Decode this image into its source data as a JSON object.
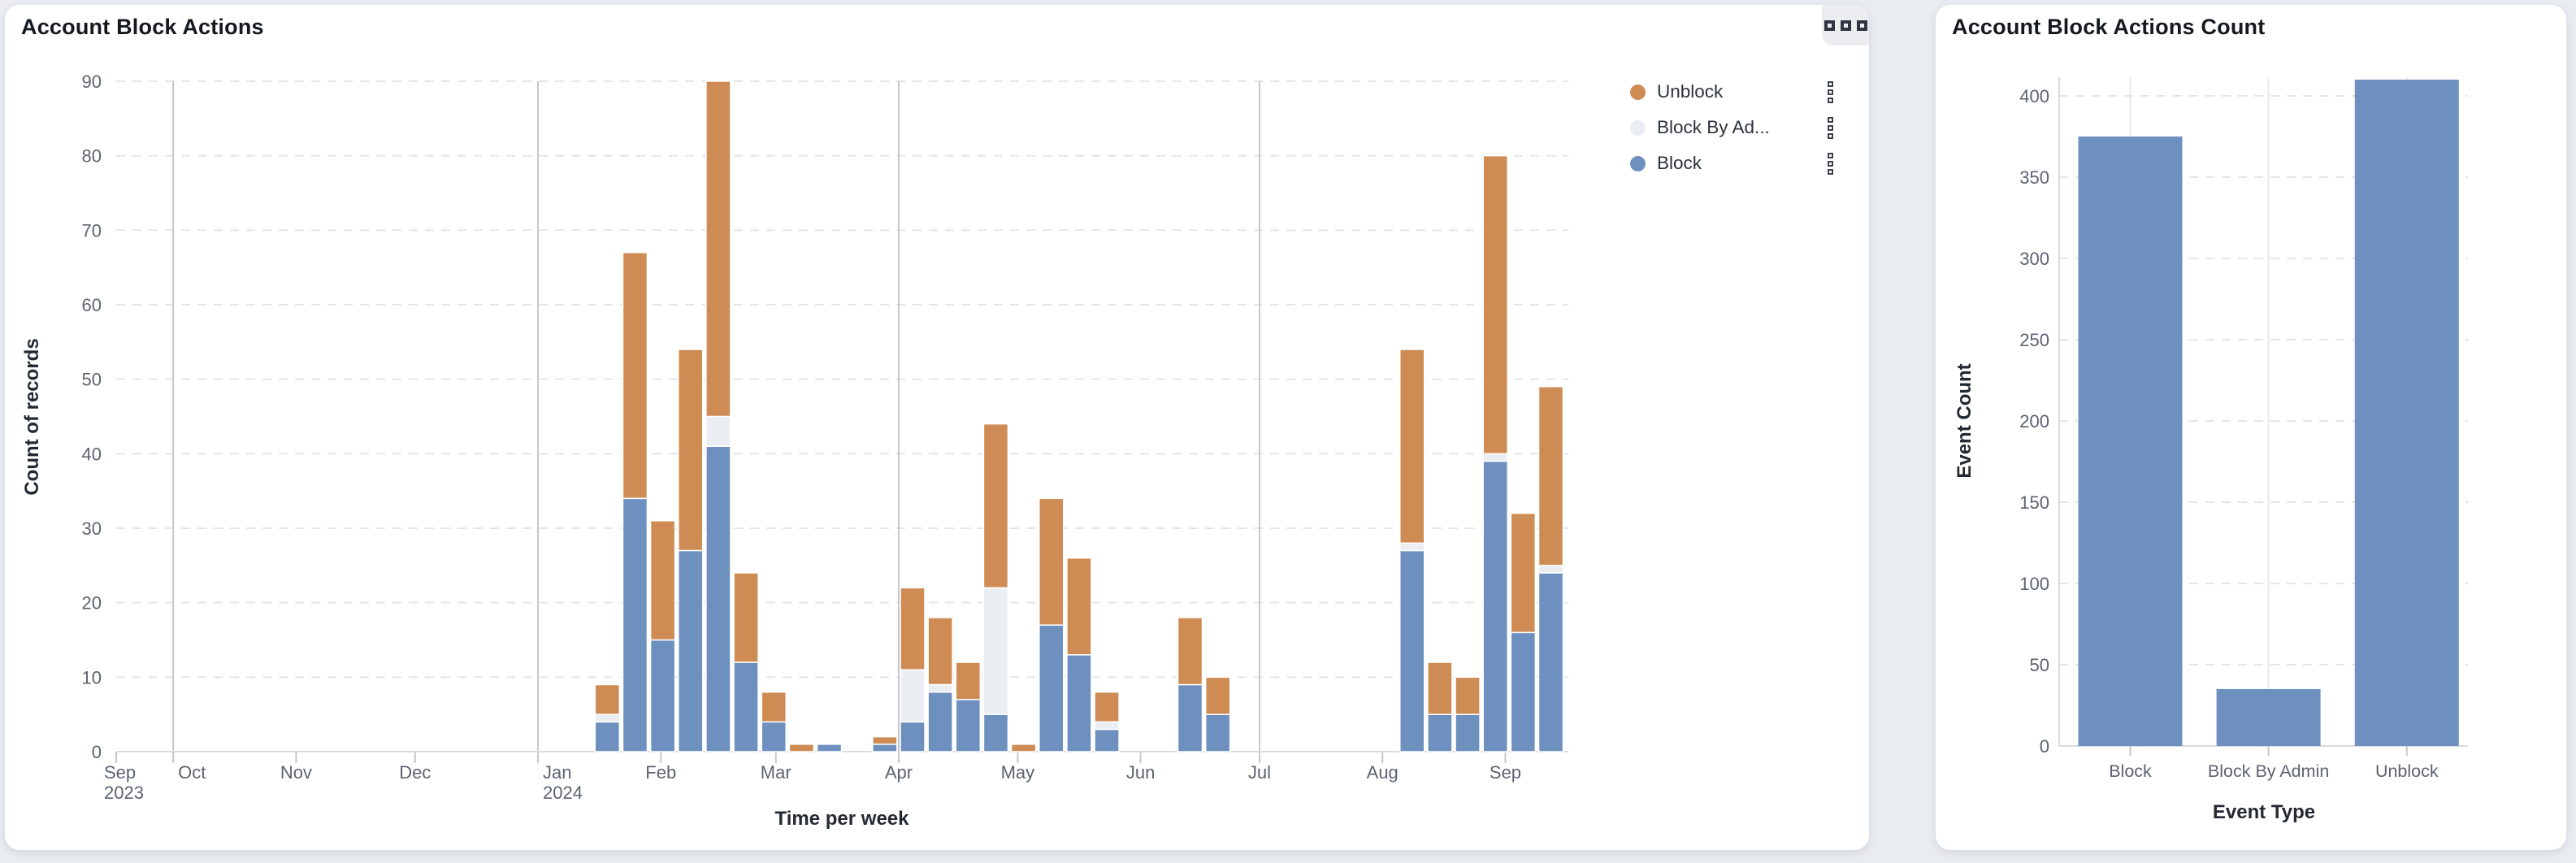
{
  "page": {
    "background": "#e9ecf1",
    "panel_background": "#ffffff"
  },
  "palette": {
    "block": "#6d90bf",
    "block_by_admin": "#eaeef3",
    "unblock": "#ce8c54",
    "tick_label": "#5c6370",
    "axis_title": "#242933",
    "grid_dashed": "#e3e5e9",
    "grid_quarter": "#c4c8ce",
    "axis_domain": "#d8dbdf",
    "category_center_grid": "#e7e9ed"
  },
  "panels": [
    {
      "title": "Account Block Actions"
    },
    {
      "title": "Account Block Actions Count"
    }
  ],
  "left_options_icon": "three-squares-menu",
  "legend": {
    "items": [
      {
        "label": "Unblock",
        "color": "#ce8c54",
        "menu_icon": "kebab-squares"
      },
      {
        "label": "Block By Ad...",
        "color": "#eaeef3",
        "menu_icon": "kebab-squares"
      },
      {
        "label": "Block",
        "color": "#6d90bf",
        "menu_icon": "kebab-squares"
      }
    ]
  },
  "chart_data": [
    {
      "type": "bar",
      "stacked": true,
      "title": "Account Block Actions",
      "xlabel": "Time per week",
      "ylabel": "Count of records",
      "ylim": [
        0,
        90
      ],
      "yticks": [
        0,
        10,
        20,
        30,
        40,
        50,
        60,
        70,
        80,
        90
      ],
      "grid": true,
      "legend_position": "top-right",
      "x_axis": {
        "unit": "week",
        "start": "2023-09-17",
        "end": "2024-09-17",
        "month_labels": [
          "Sep 2023",
          "Oct",
          "Nov",
          "Dec",
          "Jan 2024",
          "Feb",
          "Mar",
          "Apr",
          "May",
          "Jun",
          "Jul",
          "Aug",
          "Sep"
        ],
        "quarter_gridlines": [
          "2023-10-01",
          "2024-01-01",
          "2024-04-01",
          "2024-07-01"
        ]
      },
      "series_order_bottom_to_top": [
        "Block",
        "Block By Admin",
        "Unblock"
      ],
      "bars": [
        {
          "week": "2024-01-15",
          "block": 4,
          "block_by_admin": 1,
          "unblock": 4
        },
        {
          "week": "2024-01-22",
          "block": 34,
          "block_by_admin": 0,
          "unblock": 33
        },
        {
          "week": "2024-01-29",
          "block": 15,
          "block_by_admin": 0,
          "unblock": 16
        },
        {
          "week": "2024-02-05",
          "block": 27,
          "block_by_admin": 0,
          "unblock": 27
        },
        {
          "week": "2024-02-12",
          "block": 41,
          "block_by_admin": 4,
          "unblock": 45
        },
        {
          "week": "2024-02-19",
          "block": 12,
          "block_by_admin": 0,
          "unblock": 12
        },
        {
          "week": "2024-02-26",
          "block": 4,
          "block_by_admin": 0,
          "unblock": 4
        },
        {
          "week": "2024-03-04",
          "block": 0,
          "block_by_admin": 0,
          "unblock": 1
        },
        {
          "week": "2024-03-11",
          "block": 1,
          "block_by_admin": 0,
          "unblock": 0
        },
        {
          "week": "2024-03-25",
          "block": 1,
          "block_by_admin": 0,
          "unblock": 1
        },
        {
          "week": "2024-04-01",
          "block": 4,
          "block_by_admin": 7,
          "unblock": 11
        },
        {
          "week": "2024-04-08",
          "block": 8,
          "block_by_admin": 1,
          "unblock": 9
        },
        {
          "week": "2024-04-15",
          "block": 7,
          "block_by_admin": 0,
          "unblock": 5
        },
        {
          "week": "2024-04-22",
          "block": 5,
          "block_by_admin": 17,
          "unblock": 22
        },
        {
          "week": "2024-04-29",
          "block": 0,
          "block_by_admin": 0,
          "unblock": 1
        },
        {
          "week": "2024-05-06",
          "block": 17,
          "block_by_admin": 0,
          "unblock": 17
        },
        {
          "week": "2024-05-13",
          "block": 13,
          "block_by_admin": 0,
          "unblock": 13
        },
        {
          "week": "2024-05-20",
          "block": 3,
          "block_by_admin": 1,
          "unblock": 4
        },
        {
          "week": "2024-06-10",
          "block": 9,
          "block_by_admin": 0,
          "unblock": 9
        },
        {
          "week": "2024-06-17",
          "block": 5,
          "block_by_admin": 0,
          "unblock": 5
        },
        {
          "week": "2024-08-05",
          "block": 27,
          "block_by_admin": 1,
          "unblock": 26
        },
        {
          "week": "2024-08-12",
          "block": 5,
          "block_by_admin": 0,
          "unblock": 7
        },
        {
          "week": "2024-08-19",
          "block": 5,
          "block_by_admin": 0,
          "unblock": 5
        },
        {
          "week": "2024-08-26",
          "block": 39,
          "block_by_admin": 1,
          "unblock": 40
        },
        {
          "week": "2024-09-02",
          "block": 16,
          "block_by_admin": 0,
          "unblock": 16
        },
        {
          "week": "2024-09-09",
          "block": 24,
          "block_by_admin": 1,
          "unblock": 24
        }
      ]
    },
    {
      "type": "bar",
      "title": "Account Block Actions Count",
      "xlabel": "Event Type",
      "ylabel": "Event Count",
      "categories": [
        "Block",
        "Block By Admin",
        "Unblock"
      ],
      "values": [
        375,
        35,
        410
      ],
      "bar_color": "#6d90bf",
      "ylim": [
        0,
        400
      ],
      "yticks": [
        0,
        50,
        100,
        150,
        200,
        250,
        300,
        350,
        400
      ],
      "grid": true
    }
  ]
}
